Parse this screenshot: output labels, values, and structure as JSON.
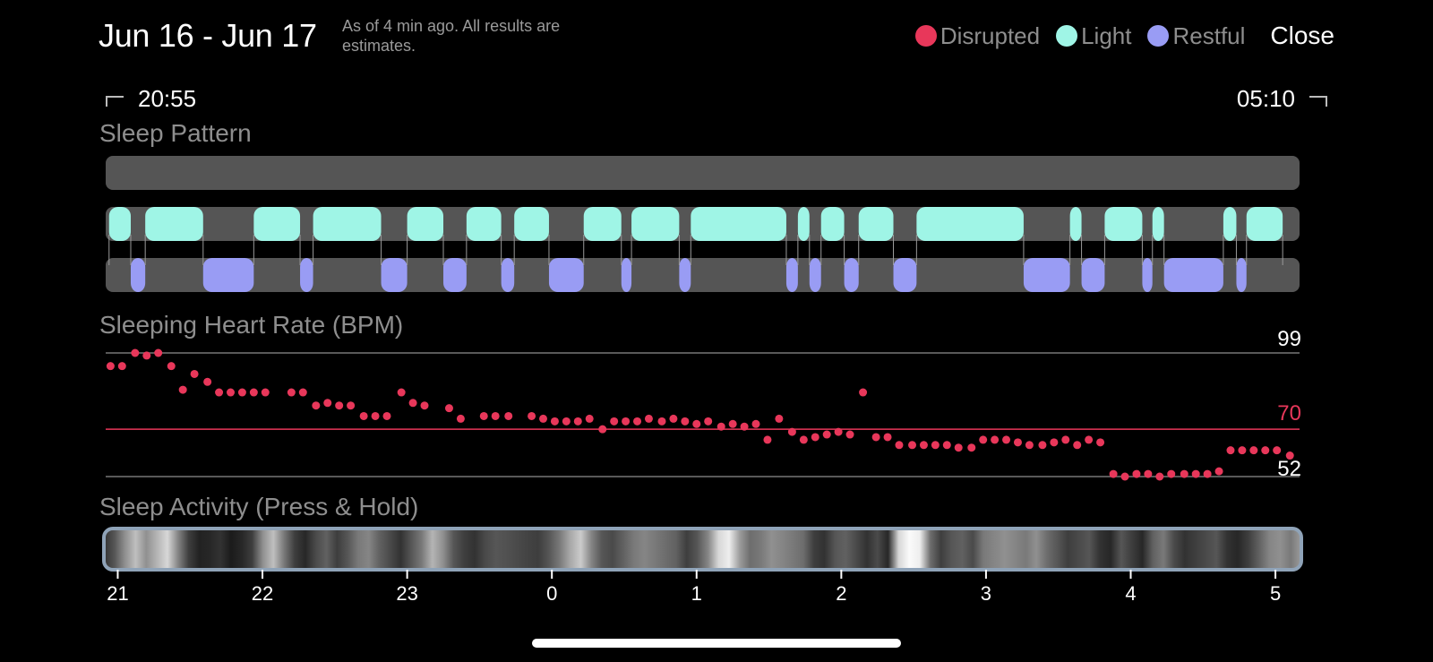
{
  "header": {
    "title": "Jun 16 - Jun 17",
    "subtitle": "As of 4 min ago. All results are estimates.",
    "close_label": "Close"
  },
  "legend": [
    {
      "label": "Disrupted",
      "color": "#e8375a"
    },
    {
      "label": "Light",
      "color": "#9ff5e6"
    },
    {
      "label": "Restful",
      "color": "#999cf4"
    }
  ],
  "time_range": {
    "start": "20:55",
    "end": "05:10"
  },
  "sleep_pattern": {
    "title": "Sleep Pattern",
    "light_segments": [
      [
        20.94,
        21.09
      ],
      [
        21.19,
        21.59
      ],
      [
        21.94,
        22.26
      ],
      [
        22.35,
        22.82
      ],
      [
        23.0,
        23.25
      ],
      [
        23.41,
        23.65
      ],
      [
        23.74,
        23.98
      ],
      [
        0.22,
        0.48
      ],
      [
        0.55,
        0.88
      ],
      [
        0.96,
        1.62
      ],
      [
        1.7,
        1.78
      ],
      [
        1.86,
        2.02
      ],
      [
        2.12,
        2.36
      ],
      [
        2.52,
        3.26
      ],
      [
        3.58,
        3.66
      ],
      [
        3.82,
        4.08
      ],
      [
        4.15,
        4.23
      ],
      [
        4.64,
        4.73
      ],
      [
        4.8,
        5.05
      ]
    ],
    "restful_segments": [
      [
        21.09,
        21.19
      ],
      [
        21.59,
        21.94
      ],
      [
        22.26,
        22.35
      ],
      [
        22.82,
        23.0
      ],
      [
        23.25,
        23.41
      ],
      [
        23.65,
        23.74
      ],
      [
        23.98,
        0.22
      ],
      [
        0.48,
        0.55
      ],
      [
        0.88,
        0.96
      ],
      [
        1.62,
        1.7
      ],
      [
        1.78,
        1.86
      ],
      [
        2.02,
        2.12
      ],
      [
        2.36,
        2.52
      ],
      [
        3.26,
        3.58
      ],
      [
        3.66,
        3.82
      ],
      [
        4.08,
        4.15
      ],
      [
        4.23,
        4.64
      ],
      [
        4.73,
        4.8
      ]
    ]
  },
  "heart_rate": {
    "title": "Sleeping Heart Rate (BPM)",
    "max_label": "99",
    "avg_label": "70",
    "min_label": "52",
    "max": 99,
    "avg": 70,
    "min": 52,
    "points": [
      [
        20.95,
        94
      ],
      [
        21.03,
        94
      ],
      [
        21.12,
        99
      ],
      [
        21.2,
        98
      ],
      [
        21.28,
        99
      ],
      [
        21.37,
        94
      ],
      [
        21.45,
        85
      ],
      [
        21.53,
        91
      ],
      [
        21.62,
        88
      ],
      [
        21.7,
        84
      ],
      [
        21.78,
        84
      ],
      [
        21.86,
        84
      ],
      [
        21.94,
        84
      ],
      [
        22.02,
        84
      ],
      [
        22.2,
        84
      ],
      [
        22.28,
        84
      ],
      [
        22.37,
        79
      ],
      [
        22.45,
        80
      ],
      [
        22.53,
        79
      ],
      [
        22.61,
        79
      ],
      [
        22.7,
        75
      ],
      [
        22.78,
        75
      ],
      [
        22.86,
        75
      ],
      [
        22.96,
        84
      ],
      [
        23.04,
        80
      ],
      [
        23.12,
        79
      ],
      [
        23.29,
        78
      ],
      [
        23.37,
        74
      ],
      [
        23.53,
        75
      ],
      [
        23.61,
        75
      ],
      [
        23.7,
        75
      ],
      [
        23.86,
        75
      ],
      [
        23.94,
        74
      ],
      [
        0.02,
        73
      ],
      [
        0.1,
        73
      ],
      [
        0.18,
        73
      ],
      [
        0.26,
        74
      ],
      [
        0.35,
        70
      ],
      [
        0.43,
        73
      ],
      [
        0.51,
        73
      ],
      [
        0.59,
        73
      ],
      [
        0.67,
        74
      ],
      [
        0.76,
        73
      ],
      [
        0.84,
        74
      ],
      [
        0.92,
        73
      ],
      [
        1.0,
        72
      ],
      [
        1.08,
        73
      ],
      [
        1.17,
        71
      ],
      [
        1.25,
        72
      ],
      [
        1.33,
        71
      ],
      [
        1.41,
        72
      ],
      [
        1.49,
        66
      ],
      [
        1.57,
        74
      ],
      [
        1.66,
        69
      ],
      [
        1.74,
        66
      ],
      [
        1.82,
        67
      ],
      [
        1.9,
        68
      ],
      [
        1.98,
        69
      ],
      [
        2.06,
        68
      ],
      [
        2.15,
        84
      ],
      [
        2.24,
        67
      ],
      [
        2.32,
        67
      ],
      [
        2.4,
        64
      ],
      [
        2.49,
        64
      ],
      [
        2.57,
        64
      ],
      [
        2.65,
        64
      ],
      [
        2.73,
        64
      ],
      [
        2.81,
        63
      ],
      [
        2.9,
        63
      ],
      [
        2.98,
        66
      ],
      [
        3.06,
        66
      ],
      [
        3.14,
        66
      ],
      [
        3.22,
        65
      ],
      [
        3.3,
        64
      ],
      [
        3.39,
        64
      ],
      [
        3.47,
        65
      ],
      [
        3.55,
        66
      ],
      [
        3.63,
        64
      ],
      [
        3.71,
        66
      ],
      [
        3.79,
        65
      ],
      [
        3.88,
        53
      ],
      [
        3.96,
        52
      ],
      [
        4.04,
        53
      ],
      [
        4.12,
        53
      ],
      [
        4.2,
        52
      ],
      [
        4.28,
        53
      ],
      [
        4.37,
        53
      ],
      [
        4.45,
        53
      ],
      [
        4.53,
        53
      ],
      [
        4.61,
        54
      ],
      [
        4.69,
        62
      ],
      [
        4.77,
        62
      ],
      [
        4.85,
        62
      ],
      [
        4.93,
        62
      ],
      [
        5.01,
        62
      ],
      [
        5.1,
        60
      ]
    ]
  },
  "activity": {
    "title": "Sleep Activity (Press & Hold)",
    "intensity": [
      0.15,
      0.3,
      0.55,
      0.75,
      0.55,
      0.7,
      0.85,
      0.5,
      0.2,
      0.08,
      0.1,
      0.15,
      0.05,
      0.1,
      0.2,
      0.55,
      0.75,
      0.45,
      0.2,
      0.1,
      0.25,
      0.35,
      0.2,
      0.3,
      0.45,
      0.5,
      0.35,
      0.25,
      0.15,
      0.3,
      0.45,
      0.7,
      0.55,
      0.3,
      0.2,
      0.15,
      0.25,
      0.3,
      0.28,
      0.25,
      0.22,
      0.2,
      0.3,
      0.45,
      0.65,
      0.8,
      0.5,
      0.3,
      0.25,
      0.35,
      0.45,
      0.5,
      0.45,
      0.4,
      0.35,
      0.2,
      0.3,
      0.5,
      0.85,
      0.95,
      0.6,
      0.4,
      0.45,
      0.55,
      0.5,
      0.45,
      0.4,
      0.2,
      0.15,
      0.3,
      0.35,
      0.25,
      0.15,
      0.25,
      0.1,
      0.85,
      1.0,
      0.95,
      0.4,
      0.2,
      0.3,
      0.35,
      0.25,
      0.45,
      0.5,
      0.55,
      0.5,
      0.45,
      0.55,
      0.4,
      0.3,
      0.2,
      0.25,
      0.3,
      0.15,
      0.1,
      0.3,
      0.2,
      0.1,
      0.35,
      0.45,
      0.25,
      0.15,
      0.2,
      0.25,
      0.3,
      0.15,
      0.1,
      0.2,
      0.35,
      0.5,
      0.55,
      0.45,
      0.6
    ]
  },
  "x_axis": {
    "ticks": [
      {
        "label": "21",
        "hour": 21
      },
      {
        "label": "22",
        "hour": 22
      },
      {
        "label": "23",
        "hour": 23
      },
      {
        "label": "0",
        "hour": 24
      },
      {
        "label": "1",
        "hour": 25
      },
      {
        "label": "2",
        "hour": 26
      },
      {
        "label": "3",
        "hour": 27
      },
      {
        "label": "4",
        "hour": 28
      },
      {
        "label": "5",
        "hour": 29
      }
    ]
  }
}
